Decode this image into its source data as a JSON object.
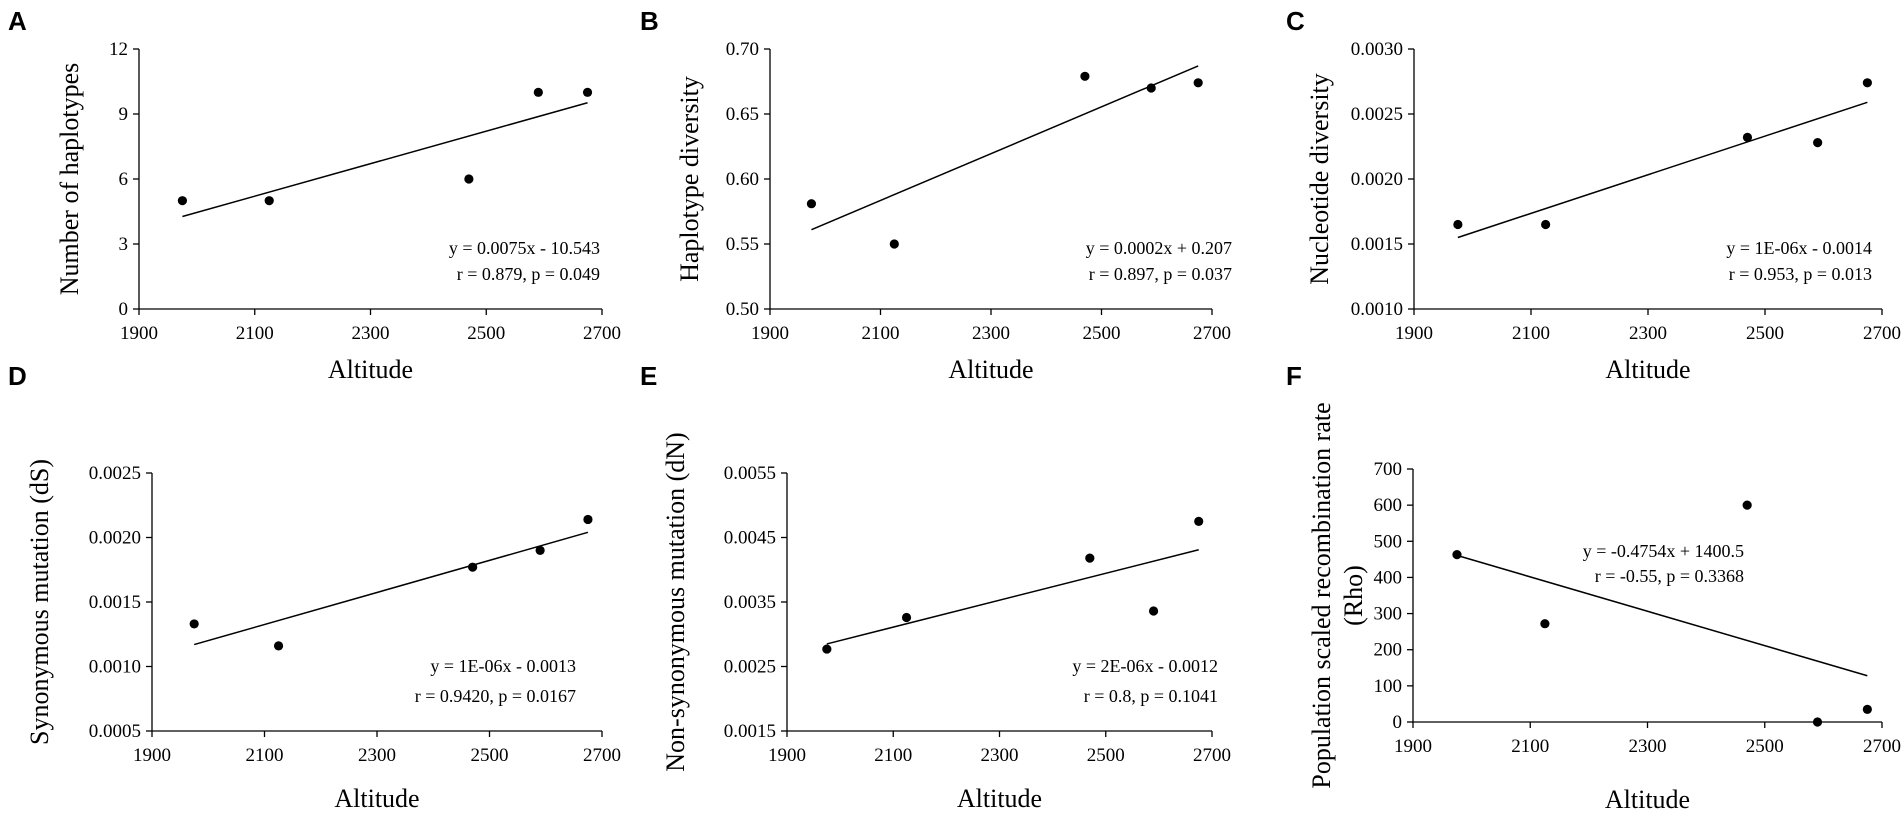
{
  "colors": {
    "ink": "#000000",
    "background": "#ffffff"
  },
  "chart_data": [
    {
      "panel": "A",
      "type": "scatter",
      "xlabel": "Altitude",
      "ylabel": "Number of haplotypes",
      "xlim": [
        1900,
        2700
      ],
      "xticks": [
        1900,
        2100,
        2300,
        2500,
        2700
      ],
      "xtick_labels": [
        "1900",
        "2100",
        "2300",
        "2500",
        "2700"
      ],
      "ylim": [
        0,
        12
      ],
      "yticks": [
        0,
        3,
        6,
        9,
        12
      ],
      "ytick_labels": [
        "0",
        "3",
        "6",
        "9",
        "12"
      ],
      "x": [
        1975,
        2125,
        2470,
        2590,
        2675
      ],
      "y": [
        5,
        5,
        6,
        10,
        10
      ],
      "trend": {
        "x": [
          1975,
          2675
        ],
        "y": [
          4.27,
          9.52
        ]
      },
      "equation": "y = 0.0075x - 10.543",
      "stats": "r = 0.879, p = 0.049",
      "annotation_position": "bottom-right"
    },
    {
      "panel": "B",
      "type": "scatter",
      "xlabel": "Altitude",
      "ylabel": "Haplotype diversity",
      "xlim": [
        1900,
        2700
      ],
      "xticks": [
        1900,
        2100,
        2300,
        2500,
        2700
      ],
      "xtick_labels": [
        "1900",
        "2100",
        "2300",
        "2500",
        "2700"
      ],
      "ylim": [
        0.5,
        0.7
      ],
      "yticks": [
        0.5,
        0.55,
        0.6,
        0.65,
        0.7
      ],
      "ytick_labels": [
        "0.50",
        "0.55",
        "0.60",
        "0.65",
        "0.70"
      ],
      "x": [
        1975,
        2125,
        2470,
        2590,
        2675
      ],
      "y": [
        0.581,
        0.55,
        0.679,
        0.67,
        0.674
      ],
      "trend": {
        "x": [
          1975,
          2675
        ],
        "y": [
          0.561,
          0.687
        ]
      },
      "equation": "y = 0.0002x + 0.207",
      "stats": "r = 0.897, p = 0.037",
      "annotation_position": "bottom-right"
    },
    {
      "panel": "C",
      "type": "scatter",
      "xlabel": "Altitude",
      "ylabel": "Nucleotide diversity",
      "xlim": [
        1900,
        2700
      ],
      "xticks": [
        1900,
        2100,
        2300,
        2500,
        2700
      ],
      "xtick_labels": [
        "1900",
        "2100",
        "2300",
        "2500",
        "2700"
      ],
      "ylim": [
        0.001,
        0.003
      ],
      "yticks": [
        0.001,
        0.0015,
        0.002,
        0.0025,
        0.003
      ],
      "ytick_labels": [
        "0.0010",
        "0.0015",
        "0.0020",
        "0.0025",
        "0.0030"
      ],
      "x": [
        1975,
        2125,
        2470,
        2590,
        2675
      ],
      "y": [
        0.00165,
        0.00165,
        0.00232,
        0.00228,
        0.00274
      ],
      "trend": {
        "x": [
          1975,
          2675
        ],
        "y": [
          0.00155,
          0.00259
        ]
      },
      "equation": "y = 1E-06x - 0.0014",
      "stats": "r = 0.953, p = 0.013",
      "annotation_position": "bottom-right"
    },
    {
      "panel": "D",
      "type": "scatter",
      "xlabel": "Altitude",
      "ylabel": "Synonymous mutation (dS)",
      "xlim": [
        1900,
        2700
      ],
      "xticks": [
        1900,
        2100,
        2300,
        2500,
        2700
      ],
      "xtick_labels": [
        "1900",
        "2100",
        "2300",
        "2500",
        "2700"
      ],
      "ylim": [
        0.0005,
        0.0025
      ],
      "yticks": [
        0.0005,
        0.001,
        0.0015,
        0.002,
        0.0025
      ],
      "ytick_labels": [
        "0.0005",
        "0.0010",
        "0.0015",
        "0.0020",
        "0.0025"
      ],
      "x": [
        1975,
        2125,
        2470,
        2590,
        2675
      ],
      "y": [
        0.00133,
        0.00116,
        0.00177,
        0.0019,
        0.00214
      ],
      "trend": {
        "x": [
          1975,
          2675
        ],
        "y": [
          0.00117,
          0.00204
        ]
      },
      "equation": "y = 1E-06x - 0.0013",
      "stats": "r = 0.9420, p = 0.0167",
      "annotation_position": "bottom-right"
    },
    {
      "panel": "E",
      "type": "scatter",
      "xlabel": "Altitude",
      "ylabel": "Non-synonymous mutation (dN)",
      "xlim": [
        1900,
        2700
      ],
      "xticks": [
        1900,
        2100,
        2300,
        2500,
        2700
      ],
      "xtick_labels": [
        "1900",
        "2100",
        "2300",
        "2500",
        "2700"
      ],
      "ylim": [
        0.0015,
        0.0055
      ],
      "yticks": [
        0.0015,
        0.0025,
        0.0035,
        0.0045,
        0.0055
      ],
      "ytick_labels": [
        "0.0015",
        "0.0025",
        "0.0035",
        "0.0045",
        "0.0055"
      ],
      "x": [
        1975,
        2125,
        2470,
        2590,
        2675
      ],
      "y": [
        0.00277,
        0.00326,
        0.00418,
        0.00336,
        0.00475
      ],
      "trend": {
        "x": [
          1975,
          2675
        ],
        "y": [
          0.00285,
          0.00431
        ]
      },
      "equation": "y = 2E-06x - 0.0012",
      "stats": "r = 0.8, p = 0.1041",
      "annotation_position": "bottom-right"
    },
    {
      "panel": "F",
      "type": "scatter",
      "xlabel": "Altitude",
      "ylabel": "Population scaled recombination rate (Rho)",
      "ylabel_lines": [
        "Population scaled recombination rate",
        "(Rho)"
      ],
      "xlim": [
        1900,
        2700
      ],
      "xticks": [
        1900,
        2100,
        2300,
        2500,
        2700
      ],
      "xtick_labels": [
        "1900",
        "2100",
        "2300",
        "2500",
        "2700"
      ],
      "ylim": [
        0,
        700
      ],
      "yticks": [
        0,
        100,
        200,
        300,
        400,
        500,
        600,
        700
      ],
      "ytick_labels": [
        "0",
        "100",
        "200",
        "300",
        "400",
        "500",
        "600",
        "700"
      ],
      "x": [
        1975,
        2125,
        2470,
        2590,
        2675
      ],
      "y": [
        463,
        272,
        600,
        0,
        35
      ],
      "trend": {
        "x": [
          1975,
          2675
        ],
        "y": [
          461,
          128
        ]
      },
      "equation": "y = -0.4754x + 1400.5",
      "stats": "r = -0.55, p = 0.3368",
      "annotation_position": "top-right"
    }
  ]
}
